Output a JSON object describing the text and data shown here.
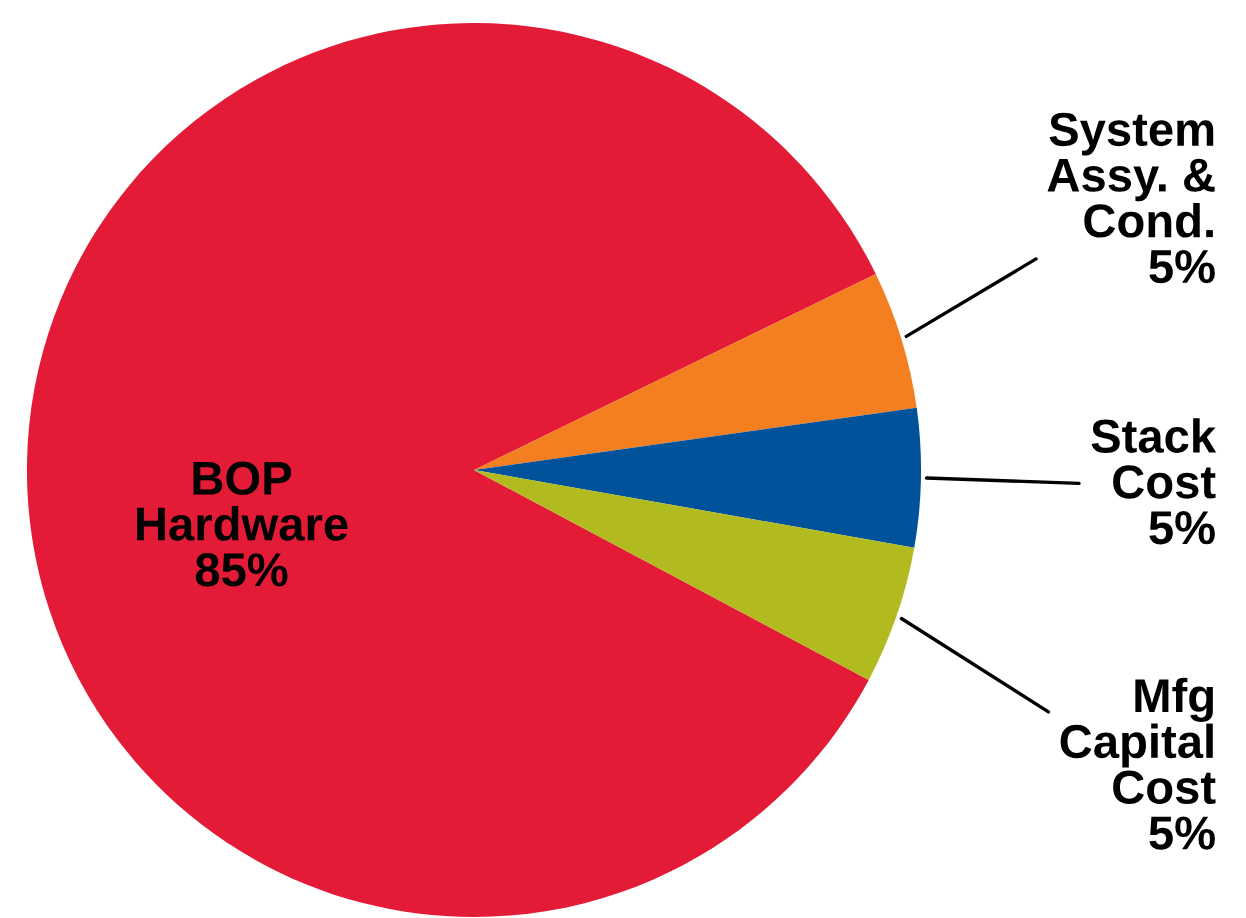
{
  "chart_data": {
    "type": "pie",
    "categories": [
      "BOP\nHardware",
      "System\nAssy. &\nCond.",
      "Stack\nCost",
      "Mfg\nCapital\nCost"
    ],
    "values": [
      85,
      5,
      5,
      5
    ],
    "colors": [
      "#e31b37",
      "#f47f20",
      "#00529b",
      "#b1bb1f"
    ],
    "value_labels": [
      "85%",
      "5%",
      "5%",
      "5%"
    ]
  }
}
